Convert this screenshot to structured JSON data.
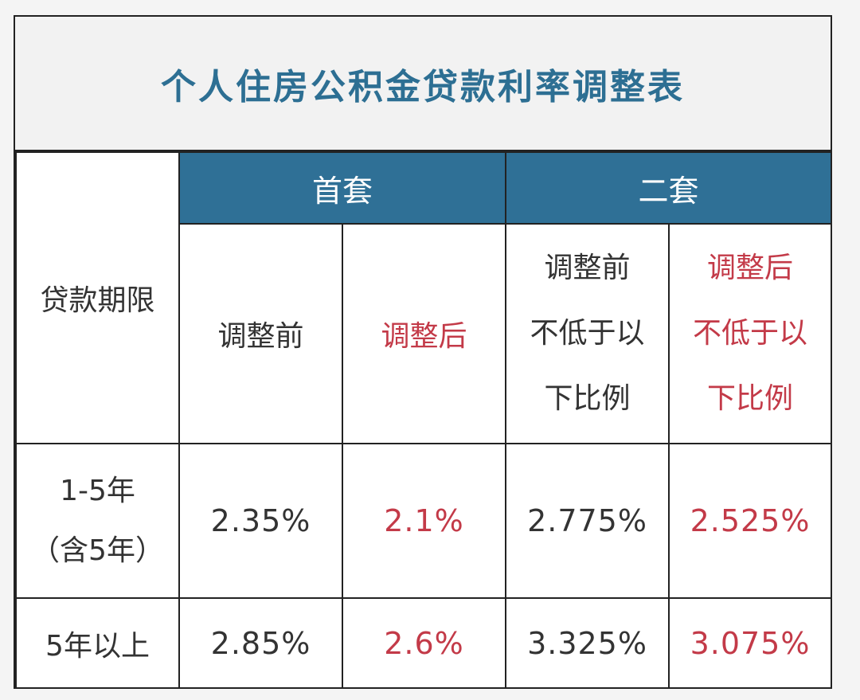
{
  "title": "个人住房公积金贷款利率调整表",
  "header": {
    "term_label": "贷款期限",
    "first_home": "首套",
    "second_home": "二套"
  },
  "subheaders": {
    "first_before": "调整前",
    "first_after": "调整后",
    "second_before": [
      "调整前",
      "不低于以",
      "下比例"
    ],
    "second_after": [
      "调整后",
      "不低于以",
      "下比例"
    ]
  },
  "rows": [
    {
      "term_lines": [
        "1-5年",
        "（含5年）"
      ],
      "first_before": "2.35%",
      "first_after": "2.1%",
      "second_before": "2.775%",
      "second_after": "2.525%"
    },
    {
      "term_lines": [
        "5年以上"
      ],
      "first_before": "2.85%",
      "first_after": "2.6%",
      "second_before": "3.325%",
      "second_after": "3.075%"
    }
  ],
  "colors": {
    "title": "#2d6f93",
    "band": "#2f7096",
    "highlight": "#c33a48",
    "text": "#333333"
  }
}
